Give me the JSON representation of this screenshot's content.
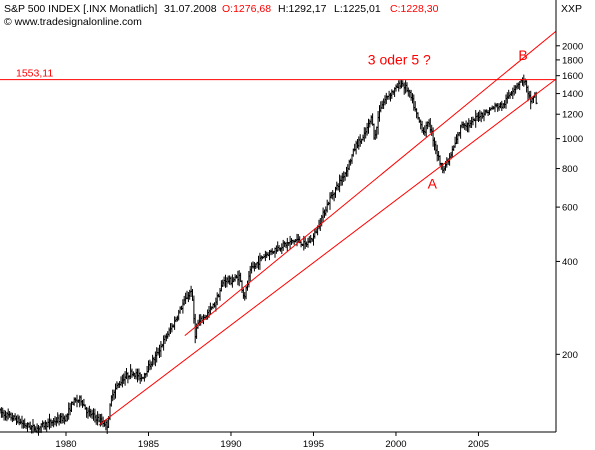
{
  "chart_data": {
    "type": "ohlc",
    "title": {
      "instrument": "S&P 500 INDEX [.INX Monatlich]",
      "date": "31.07.2008",
      "open_label": "O:1276,68",
      "high_label": "H:1292,17",
      "low_label": "L:1225,01",
      "close_label": "C:1228,30"
    },
    "source": "© www.tradesignalonline.com",
    "y_axis_unit": "XXP",
    "y_scale": "log",
    "ylim": [
      112,
      2250
    ],
    "xlim": [
      1976.0,
      2009.7
    ],
    "x_ticks": [
      {
        "value": 1980,
        "label": "1980"
      },
      {
        "value": 1985,
        "label": "1985"
      },
      {
        "value": 1990,
        "label": "1990"
      },
      {
        "value": 1995,
        "label": "1995"
      },
      {
        "value": 2000,
        "label": "2000"
      },
      {
        "value": 2005,
        "label": "2005"
      }
    ],
    "y_ticks": [
      {
        "value": 2000,
        "label": "2000"
      },
      {
        "value": 1800,
        "label": "1800"
      },
      {
        "value": 1600,
        "label": "1600"
      },
      {
        "value": 1400,
        "label": "1400"
      },
      {
        "value": 1200,
        "label": "1200"
      },
      {
        "value": 1000,
        "label": "1000"
      },
      {
        "value": 800,
        "label": "800"
      },
      {
        "value": 600,
        "label": "600"
      },
      {
        "value": 400,
        "label": "400"
      },
      {
        "value": 200,
        "label": "200"
      }
    ],
    "price_anchors": [
      [
        1976.0,
        130
      ],
      [
        1977.0,
        123
      ],
      [
        1977.5,
        118
      ],
      [
        1978.2,
        115
      ],
      [
        1979.0,
        120
      ],
      [
        1980.0,
        125
      ],
      [
        1980.4,
        140
      ],
      [
        1980.9,
        143
      ],
      [
        1981.3,
        130
      ],
      [
        1982.5,
        118
      ],
      [
        1982.8,
        150
      ],
      [
        1983.5,
        168
      ],
      [
        1984.0,
        175
      ],
      [
        1984.6,
        168
      ],
      [
        1985.0,
        182
      ],
      [
        1985.5,
        200
      ],
      [
        1986.0,
        225
      ],
      [
        1986.5,
        250
      ],
      [
        1987.0,
        285
      ],
      [
        1987.6,
        325
      ],
      [
        1987.83,
        232
      ],
      [
        1988.0,
        252
      ],
      [
        1988.5,
        268
      ],
      [
        1989.0,
        290
      ],
      [
        1989.6,
        350
      ],
      [
        1990.0,
        345
      ],
      [
        1990.5,
        358
      ],
      [
        1990.8,
        305
      ],
      [
        1991.2,
        375
      ],
      [
        1992.0,
        418
      ],
      [
        1993.0,
        448
      ],
      [
        1994.0,
        470
      ],
      [
        1994.5,
        452
      ],
      [
        1995.0,
        480
      ],
      [
        1996.0,
        640
      ],
      [
        1997.0,
        790
      ],
      [
        1997.6,
        960
      ],
      [
        1998.0,
        1000
      ],
      [
        1998.55,
        1180
      ],
      [
        1998.7,
        980
      ],
      [
        1999.0,
        1250
      ],
      [
        1999.5,
        1380
      ],
      [
        2000.0,
        1450
      ],
      [
        2000.3,
        1520
      ],
      [
        2000.7,
        1440
      ],
      [
        2001.0,
        1320
      ],
      [
        2001.3,
        1170
      ],
      [
        2001.7,
        1050
      ],
      [
        2002.0,
        1130
      ],
      [
        2002.5,
        890
      ],
      [
        2002.8,
        800
      ],
      [
        2003.2,
        850
      ],
      [
        2003.7,
        1000
      ],
      [
        2004.0,
        1120
      ],
      [
        2004.5,
        1110
      ],
      [
        2005.0,
        1190
      ],
      [
        2005.5,
        1220
      ],
      [
        2006.0,
        1270
      ],
      [
        2006.5,
        1280
      ],
      [
        2007.0,
        1430
      ],
      [
        2007.5,
        1530
      ],
      [
        2007.8,
        1550
      ],
      [
        2008.0,
        1380
      ],
      [
        2008.2,
        1320
      ],
      [
        2008.4,
        1400
      ],
      [
        2008.58,
        1228
      ]
    ],
    "annotations": {
      "resistance_line": {
        "value": 1553.11,
        "label": "1553,11"
      },
      "trend_lines": [
        {
          "name": "lower-channel-line",
          "x": [
            1982.0,
            2009.7
          ],
          "y": [
            118,
            1560
          ]
        },
        {
          "name": "upper-channel-line",
          "x": [
            1987.2,
            2009.7
          ],
          "y": [
            230,
            2230
          ]
        }
      ],
      "wave_labels": [
        {
          "text": "3 oder 5 ?",
          "x": 2000.2,
          "y": 1740
        },
        {
          "text": "B",
          "x": 2007.7,
          "y": 1800
        },
        {
          "text": "A",
          "x": 2002.2,
          "y": 690
        }
      ]
    }
  },
  "colors": {
    "background": "#ffffff",
    "price_bar": "#000000",
    "annotation": "#ff0000",
    "title_text": "#000000",
    "ohlc_values": "#ff0000",
    "axis_text": "#000000",
    "frame": "#000000"
  }
}
